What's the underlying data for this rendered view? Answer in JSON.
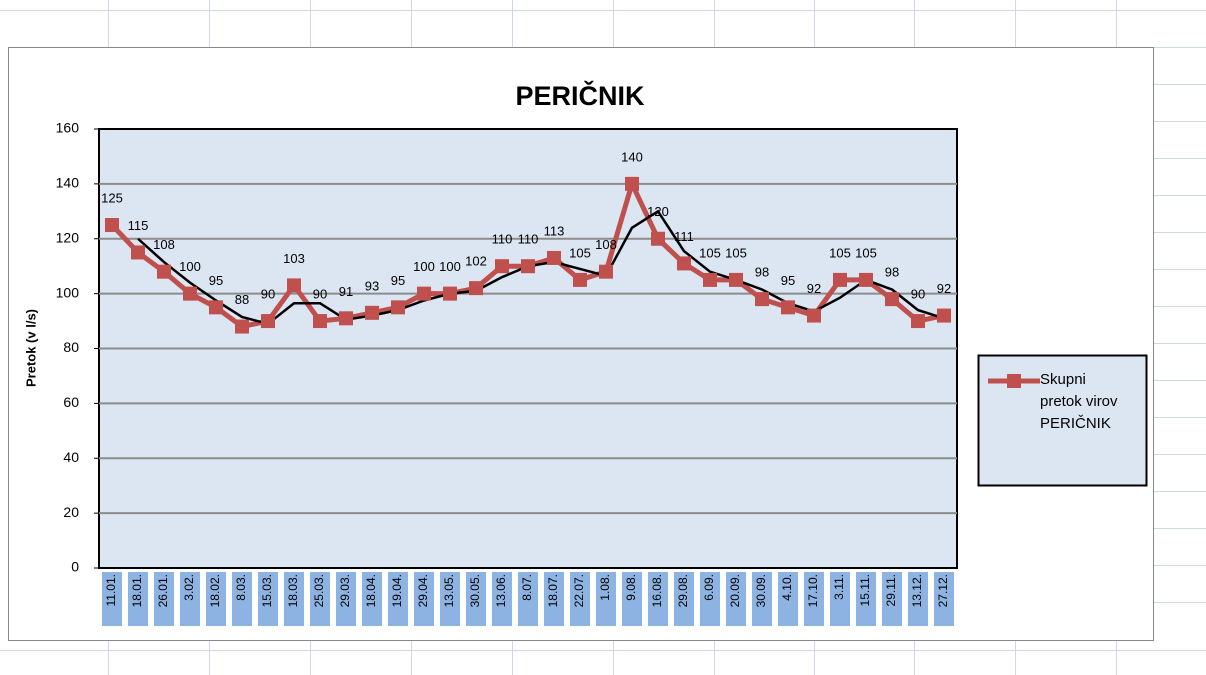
{
  "chart_data": {
    "type": "line",
    "title": "PERIČNIK",
    "y_label": "Pretok (v l/s)",
    "categories": [
      "11.01.",
      "18.01.",
      "26.01.",
      "3.02.",
      "18.02.",
      "8.03.",
      "15.03.",
      "18.03.",
      "25.03.",
      "29.03.",
      "18.04.",
      "19.04.",
      "29.04.",
      "13.05.",
      "30.05.",
      "13.06.",
      "8.07.",
      "18.07.",
      "22.07.",
      "1.08.",
      "9.08.",
      "16.08.",
      "29.08.",
      "6.09.",
      "20.09.",
      "30.09.",
      "4.10.",
      "17.10.",
      "3.11.",
      "15.11.",
      "29.11.",
      "13.12.",
      "27.12."
    ],
    "series": [
      {
        "name": "Skupni pretok virov PERIČNIK",
        "color": "#c0504d",
        "values": [
          125,
          115,
          108,
          100,
          95,
          88,
          90,
          103,
          90,
          91,
          93,
          95,
          100,
          100,
          102,
          110,
          110,
          113,
          105,
          108,
          140,
          120,
          111,
          105,
          105,
          98,
          95,
          92,
          105,
          105,
          98,
          90,
          92
        ]
      }
    ],
    "moving_average_period": 2,
    "trendline_color": "#000000",
    "ylim": [
      0,
      160
    ],
    "yticks": [
      0,
      20,
      40,
      60,
      80,
      100,
      120,
      140,
      160
    ],
    "grid": true,
    "legend": "right"
  }
}
